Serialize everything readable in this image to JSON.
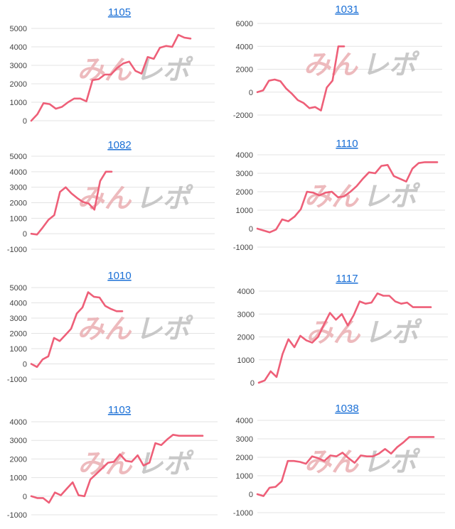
{
  "line_color": "#ee5f78",
  "title_color": "#1a6fd6",
  "watermark": {
    "part1": "みん",
    "part2": "レポ"
  },
  "chart_data": [
    {
      "type": "line",
      "title": "1105",
      "ylim": [
        0,
        5000
      ],
      "yticks": [
        0,
        1000,
        2000,
        3000,
        4000,
        5000
      ],
      "ytick_labels": [
        "0",
        "1000",
        "2000",
        "3000",
        "4000",
        "5000"
      ],
      "x": [
        0,
        1,
        2,
        3,
        4,
        5,
        6,
        7,
        8,
        9,
        10,
        11,
        12,
        13,
        14,
        15,
        16,
        17,
        18,
        19,
        20,
        21,
        22,
        23,
        24,
        25,
        26
      ],
      "y": [
        0,
        350,
        950,
        900,
        650,
        750,
        1000,
        1200,
        1200,
        1050,
        2200,
        2250,
        2500,
        2500,
        2850,
        3100,
        3200,
        2700,
        2550,
        3450,
        3350,
        3950,
        4050,
        4000,
        4650,
        4500,
        4450
      ]
    },
    {
      "type": "line",
      "title": "1031",
      "ylim": [
        -2000,
        6000
      ],
      "yticks": [
        -2000,
        0,
        2000,
        4000,
        6000
      ],
      "ytick_labels": [
        "-2000",
        "0",
        "2000",
        "4000",
        "6000"
      ],
      "x": [
        0,
        1,
        2,
        3,
        4,
        5,
        6,
        7,
        8,
        9,
        10,
        11,
        12,
        13,
        14,
        15
      ],
      "y": [
        0,
        150,
        1000,
        1100,
        950,
        300,
        -150,
        -700,
        -950,
        -1400,
        -1300,
        -1600,
        400,
        1000,
        4000,
        4000
      ]
    },
    {
      "type": "line",
      "title": "1082",
      "ylim": [
        -1000,
        5000
      ],
      "yticks": [
        -1000,
        0,
        1000,
        2000,
        3000,
        4000,
        5000
      ],
      "ytick_labels": [
        "-1000",
        "0",
        "1000",
        "2000",
        "3000",
        "4000",
        "5000"
      ],
      "x": [
        0,
        1,
        2,
        3,
        4,
        5,
        6,
        7,
        8,
        9,
        10,
        11,
        12,
        13,
        14
      ],
      "y": [
        0,
        -50,
        400,
        900,
        1200,
        2700,
        3000,
        2600,
        2300,
        2050,
        1950,
        1550,
        3400,
        4000,
        4000
      ]
    },
    {
      "type": "line",
      "title": "1110",
      "ylim": [
        -1000,
        4000
      ],
      "yticks": [
        -1000,
        0,
        1000,
        2000,
        3000,
        4000
      ],
      "ytick_labels": [
        "-1000",
        "0",
        "1000",
        "2000",
        "3000",
        "4000"
      ],
      "x": [
        0,
        1,
        2,
        3,
        4,
        5,
        6,
        7,
        8,
        9,
        10,
        11,
        12,
        13,
        14,
        15,
        16,
        17,
        18,
        19,
        20,
        21,
        22,
        23,
        24,
        25,
        26,
        27,
        28,
        29
      ],
      "y": [
        0,
        -100,
        -200,
        -50,
        500,
        400,
        650,
        1050,
        2000,
        1950,
        1800,
        1950,
        2000,
        1700,
        1750,
        2000,
        2300,
        2700,
        3050,
        3000,
        3400,
        3450,
        2850,
        2700,
        2550,
        3250,
        3550,
        3600,
        3600,
        3600
      ]
    },
    {
      "type": "line",
      "title": "1010",
      "ylim": [
        -1000,
        5000
      ],
      "yticks": [
        -1000,
        0,
        1000,
        2000,
        3000,
        4000,
        5000
      ],
      "ytick_labels": [
        "-1000",
        "0",
        "1000",
        "2000",
        "3000",
        "4000",
        "5000"
      ],
      "x": [
        0,
        1,
        2,
        3,
        4,
        5,
        6,
        7,
        8,
        9,
        10,
        11,
        12,
        13,
        14,
        15,
        16
      ],
      "y": [
        0,
        -200,
        300,
        500,
        1700,
        1500,
        1900,
        2300,
        3300,
        3700,
        4700,
        4400,
        4350,
        3800,
        3600,
        3450,
        3450
      ]
    },
    {
      "type": "line",
      "title": "1117",
      "ylim": [
        0,
        4000
      ],
      "yticks": [
        0,
        1000,
        2000,
        3000,
        4000
      ],
      "ytick_labels": [
        "0",
        "1000",
        "2000",
        "3000",
        "4000"
      ],
      "x": [
        0,
        1,
        2,
        3,
        4,
        5,
        6,
        7,
        8,
        9,
        10,
        11,
        12,
        13,
        14,
        15,
        16,
        17,
        18,
        19,
        20,
        21,
        22,
        23,
        24,
        25,
        26,
        27,
        28,
        29
      ],
      "y": [
        0,
        100,
        500,
        250,
        1250,
        1900,
        1550,
        2050,
        1850,
        1750,
        2000,
        2550,
        3050,
        2750,
        3000,
        2500,
        2950,
        3550,
        3450,
        3500,
        3900,
        3800,
        3800,
        3550,
        3450,
        3500,
        3300,
        3300,
        3300,
        3300
      ]
    },
    {
      "type": "line",
      "title": "1103",
      "ylim": [
        -1000,
        4000
      ],
      "yticks": [
        -1000,
        0,
        1000,
        2000,
        3000,
        4000
      ],
      "ytick_labels": [
        "-1000",
        "0",
        "1000",
        "2000",
        "3000",
        "4000"
      ],
      "x": [
        0,
        1,
        2,
        3,
        4,
        5,
        6,
        7,
        8,
        9,
        10,
        11,
        12,
        13,
        14,
        15,
        16,
        17,
        18,
        19,
        20,
        21,
        22,
        23,
        24,
        25,
        26,
        27,
        28,
        29
      ],
      "y": [
        0,
        -100,
        -100,
        -350,
        200,
        50,
        400,
        750,
        50,
        0,
        900,
        1200,
        1500,
        1800,
        1850,
        2250,
        1900,
        1850,
        2200,
        1650,
        1800,
        2850,
        2750,
        3050,
        3300,
        3250,
        3250,
        3250,
        3250,
        3250
      ]
    },
    {
      "type": "line",
      "title": "1038",
      "ylim": [
        -1000,
        4000
      ],
      "yticks": [
        -1000,
        0,
        1000,
        2000,
        3000,
        4000
      ],
      "ytick_labels": [
        "-1000",
        "0",
        "1000",
        "2000",
        "3000",
        "4000"
      ],
      "x": [
        0,
        1,
        2,
        3,
        4,
        5,
        6,
        7,
        8,
        9,
        10,
        11,
        12,
        13,
        14,
        15,
        16,
        17,
        18,
        19,
        20,
        21,
        22,
        23,
        24,
        25,
        26,
        27,
        28,
        29
      ],
      "y": [
        0,
        -100,
        350,
        400,
        700,
        1800,
        1800,
        1750,
        1650,
        2050,
        1950,
        1800,
        2100,
        2050,
        2250,
        1950,
        1700,
        2100,
        2050,
        2050,
        2200,
        2450,
        2200,
        2550,
        2800,
        3100,
        3100,
        3100,
        3100,
        3100
      ]
    }
  ]
}
